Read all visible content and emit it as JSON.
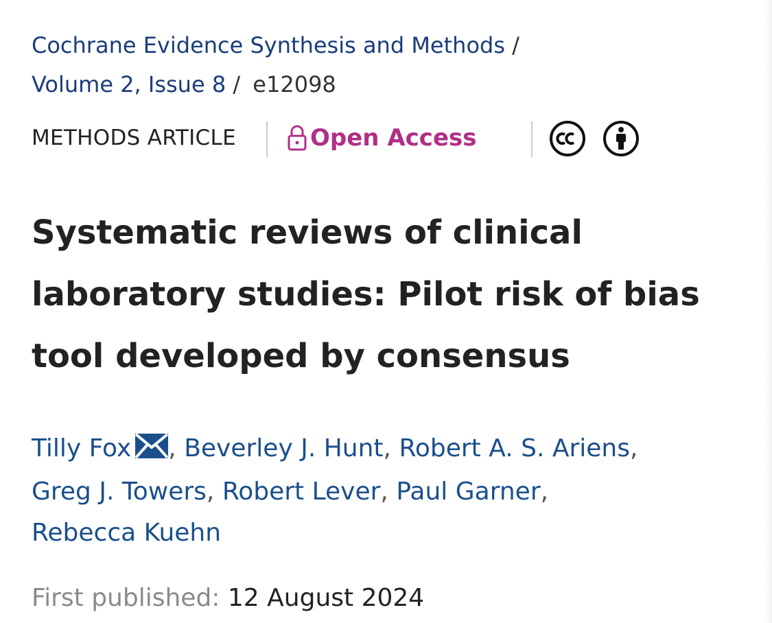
{
  "breadcrumb": {
    "journal": "Cochrane Evidence Synthesis and Methods",
    "separator": "/",
    "volume_issue": "Volume 2, Issue 8",
    "article_id": "e12098"
  },
  "meta": {
    "article_type": "METHODS ARTICLE",
    "open_access_label": "Open Access",
    "icons": [
      "lock-open-icon",
      "cc-icon",
      "attribution-icon"
    ],
    "accent_color": "#b02f86"
  },
  "title": {
    "line1": "Systematic reviews of clinical",
    "line2": "laboratory studies: Pilot risk of bias",
    "line3": "tool developed by consensus"
  },
  "authors": [
    "Tilly Fox",
    "Beverley J. Hunt",
    "Robert A. S. Ariens",
    "Greg J. Towers",
    "Robert Lever",
    "Paul Garner",
    "Rebecca Kuehn"
  ],
  "comma": ",",
  "published": {
    "label": "First published:",
    "date": "12 August 2024"
  }
}
